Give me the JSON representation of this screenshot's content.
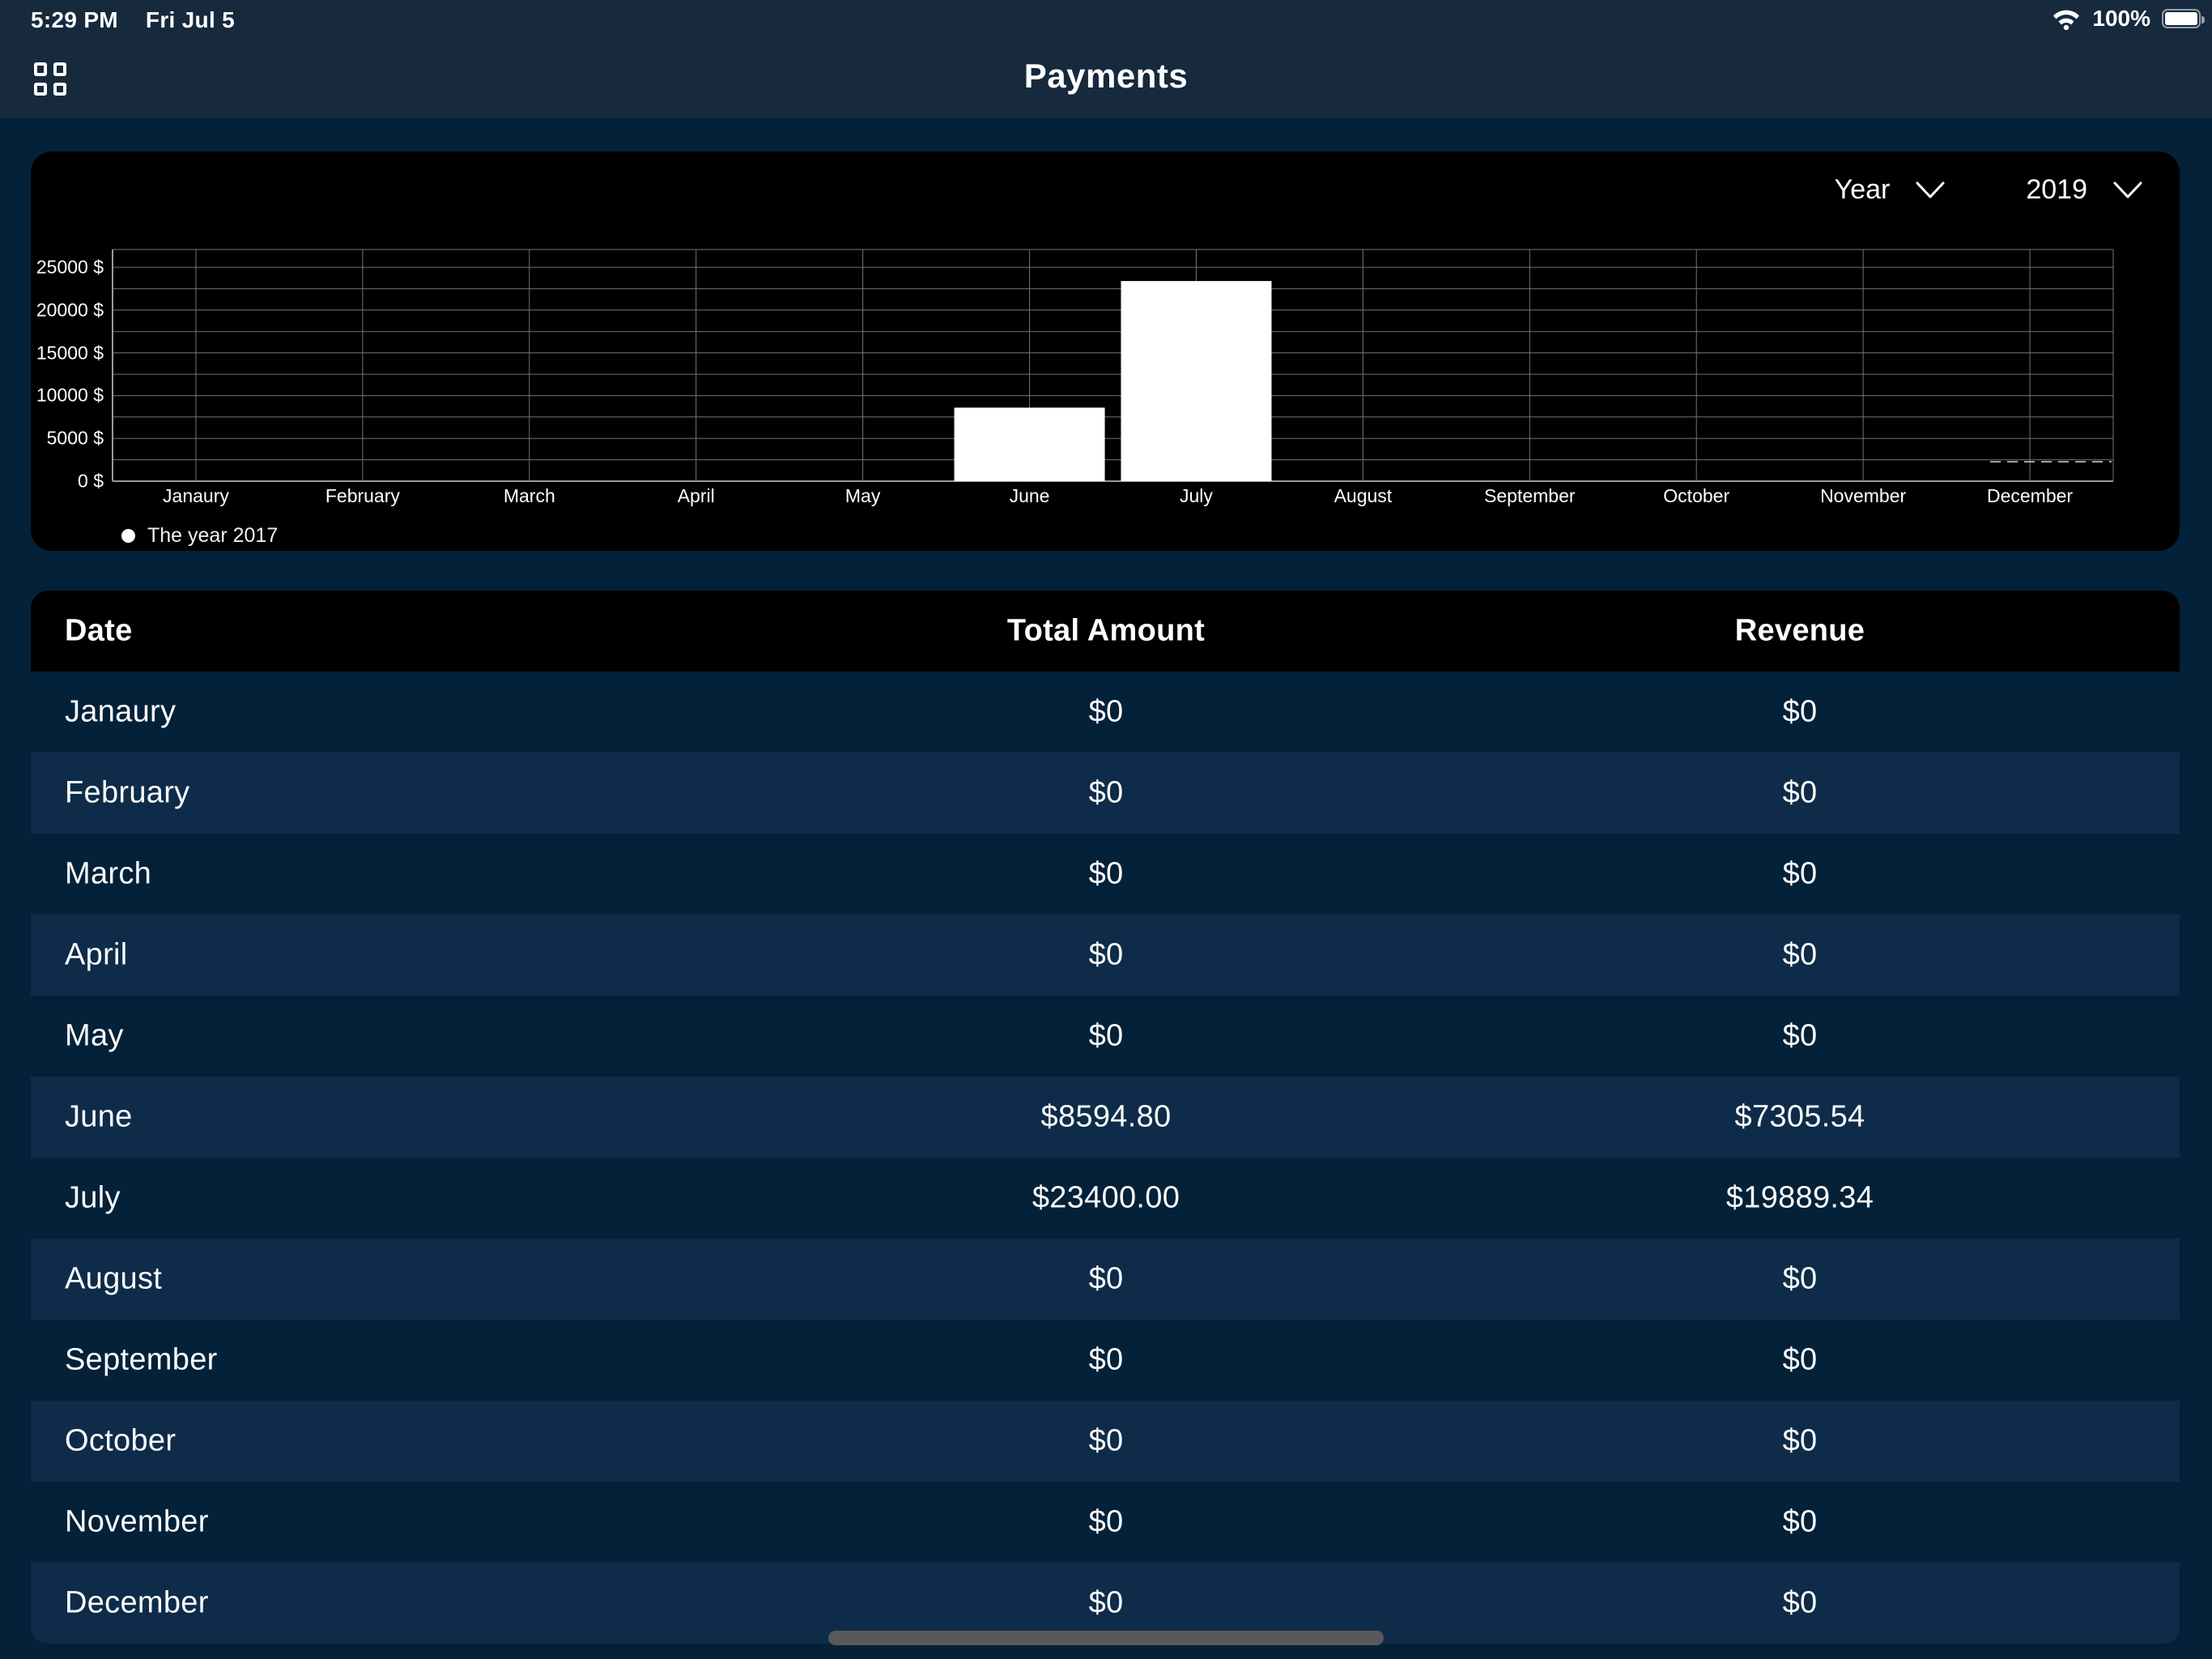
{
  "status_bar": {
    "time": "5:29 PM",
    "date": "Fri Jul 5",
    "battery_percent": "100%",
    "icons": [
      "wifi-icon",
      "battery-icon"
    ]
  },
  "nav": {
    "title": "Payments",
    "menu_icon": "apps-grid-icon"
  },
  "chart": {
    "controls": {
      "period_label": "Year",
      "period_icon": "chevron-down-icon",
      "year_value": "2019",
      "year_icon": "chevron-down-icon"
    },
    "legend_label": "The year 2017",
    "legend_marker": "white-dot"
  },
  "chart_data": {
    "type": "bar",
    "title": "",
    "xlabel": "",
    "ylabel": "",
    "categories": [
      "Janaury",
      "February",
      "March",
      "April",
      "May",
      "June",
      "July",
      "August",
      "September",
      "October",
      "November",
      "December"
    ],
    "series": [
      {
        "name": "The year 2017",
        "values": [
          0,
          0,
          0,
          0,
          0,
          8594.8,
          23400.0,
          0,
          0,
          0,
          0,
          0
        ]
      }
    ],
    "ylim": [
      0,
      27000
    ],
    "ytick_values": [
      0,
      5000,
      10000,
      15000,
      20000,
      25000
    ],
    "ytick_suffix": " $",
    "ytick_minor_step": 2500,
    "bar_color": "#ffffff",
    "grid": true,
    "background": "#000000",
    "legend_position": "bottom-left"
  },
  "table": {
    "columns": [
      "Date",
      "Total Amount",
      "Revenue"
    ],
    "rows": [
      {
        "date": "Janaury",
        "total": "$0",
        "revenue": "$0"
      },
      {
        "date": "February",
        "total": "$0",
        "revenue": "$0"
      },
      {
        "date": "March",
        "total": "$0",
        "revenue": "$0"
      },
      {
        "date": "April",
        "total": "$0",
        "revenue": "$0"
      },
      {
        "date": "May",
        "total": "$0",
        "revenue": "$0"
      },
      {
        "date": "June",
        "total": "$8594.80",
        "revenue": "$7305.54"
      },
      {
        "date": "July",
        "total": "$23400.00",
        "revenue": "$19889.34"
      },
      {
        "date": "August",
        "total": "$0",
        "revenue": "$0"
      },
      {
        "date": "September",
        "total": "$0",
        "revenue": "$0"
      },
      {
        "date": "October",
        "total": "$0",
        "revenue": "$0"
      },
      {
        "date": "November",
        "total": "$0",
        "revenue": "$0"
      },
      {
        "date": "December",
        "total": "$0",
        "revenue": "$0"
      }
    ]
  },
  "colors": {
    "topbar_bg": "#16293d",
    "page_bg": "#032138",
    "chart_bg": "#000000",
    "alt_row_bg": "#0e2c49",
    "bar_fill": "#ffffff",
    "grid_line": "#757575",
    "home_indicator": "#59595c"
  }
}
